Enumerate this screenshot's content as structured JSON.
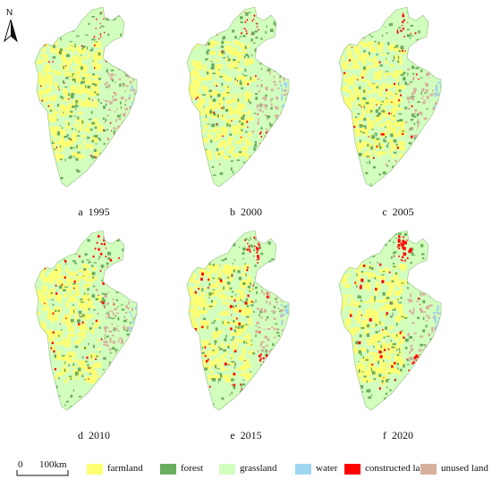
{
  "colors": {
    "farmland": "#ffff73",
    "forest": "#6bad5e",
    "grassland": "#d3ffbe",
    "water": "#9ed7f0",
    "constructed_land": "#ff0000",
    "unused_land": "#d7b09e"
  },
  "north": {
    "label": "N",
    "icon": "north-arrow-icon"
  },
  "panels": [
    {
      "caption": "a  1995",
      "year": 1995,
      "constructed_density": 0.25
    },
    {
      "caption": "b  2000",
      "year": 2000,
      "constructed_density": 0.35
    },
    {
      "caption": "c  2005",
      "year": 2005,
      "constructed_density": 0.45
    },
    {
      "caption": "d  2010",
      "year": 2010,
      "constructed_density": 0.6
    },
    {
      "caption": "e  2015",
      "year": 2015,
      "constructed_density": 0.75
    },
    {
      "caption": "f  2020",
      "year": 2020,
      "constructed_density": 0.85
    }
  ],
  "scale_bar": {
    "zero": "0",
    "end": "100km"
  },
  "legend": [
    {
      "key": "farmland",
      "label": "farmland"
    },
    {
      "key": "forest",
      "label": "forest"
    },
    {
      "key": "grassland",
      "label": "grassland"
    },
    {
      "key": "water",
      "label": "water"
    },
    {
      "key": "constructed_land",
      "label": "constructed land"
    },
    {
      "key": "unused_land",
      "label": "unused land"
    }
  ]
}
